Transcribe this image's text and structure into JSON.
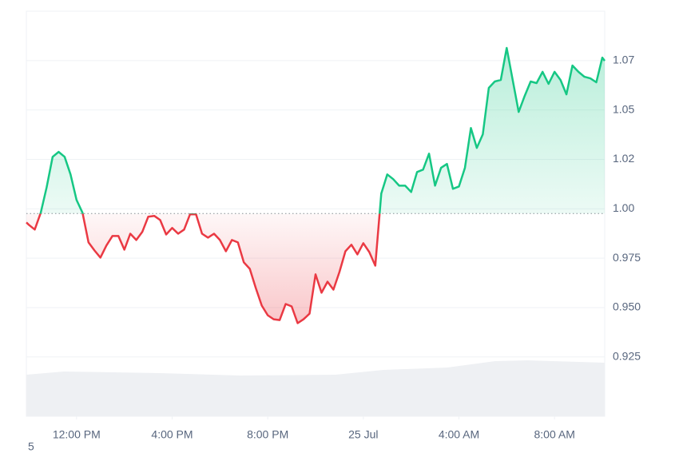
{
  "chart_data": {
    "type": "line",
    "x": [
      9.9,
      10,
      10.25,
      10.5,
      10.75,
      11,
      11.25,
      11.5,
      11.75,
      12,
      12.25,
      12.5,
      12.75,
      13,
      13.25,
      13.5,
      13.75,
      14,
      14.25,
      14.5,
      14.75,
      15,
      15.25,
      15.5,
      15.75,
      16,
      16.25,
      16.5,
      16.75,
      17,
      17.25,
      17.5,
      17.75,
      18,
      18.25,
      18.5,
      18.75,
      19,
      19.25,
      19.5,
      19.75,
      20,
      20.25,
      20.5,
      20.75,
      21,
      21.25,
      21.5,
      21.75,
      22,
      22.25,
      22.5,
      22.75,
      23,
      23.25,
      23.5,
      23.75,
      24,
      24.25,
      24.5,
      24.75,
      25,
      25.25,
      25.5,
      25.75,
      26,
      26.25,
      26.5,
      26.75,
      27,
      27.25,
      27.5,
      27.75,
      28,
      28.25,
      28.5,
      28.75,
      29,
      29.25,
      29.5,
      29.75,
      30,
      30.25,
      30.5,
      30.75,
      31,
      31.25,
      31.5,
      31.75,
      32,
      32.25,
      32.5,
      32.75,
      33,
      33.25,
      33.5,
      33.75,
      34,
      34.1
    ],
    "series": [
      {
        "values": [
          0.9931,
          0.9919,
          0.9895,
          0.998,
          1.0109,
          1.0263,
          1.0288,
          1.0263,
          1.0174,
          1.0045,
          0.998,
          0.983,
          0.9789,
          0.9753,
          0.9814,
          0.9862,
          0.9862,
          0.9793,
          0.9874,
          0.9842,
          0.9883,
          0.996,
          0.9964,
          0.9943,
          0.987,
          0.9903,
          0.9874,
          0.9895,
          0.9972,
          0.9972,
          0.9874,
          0.9854,
          0.9874,
          0.9842,
          0.9785,
          0.9842,
          0.983,
          0.9729,
          0.9696,
          0.9599,
          0.951,
          0.9461,
          0.9441,
          0.9437,
          0.9518,
          0.9506,
          0.9421,
          0.9441,
          0.9469,
          0.9668,
          0.9575,
          0.9631,
          0.9591,
          0.968,
          0.9785,
          0.9818,
          0.9769,
          0.9826,
          0.9781,
          0.9712,
          1.0077,
          1.0174,
          1.015,
          1.0117,
          1.0117,
          1.0085,
          1.0186,
          1.0198,
          1.0279,
          1.0117,
          1.0207,
          1.0227,
          1.0101,
          1.0113,
          1.0207,
          1.0409,
          1.0308,
          1.0377,
          1.0612,
          1.0644,
          1.0652,
          1.0814,
          1.0652,
          1.049,
          1.0571,
          1.0644,
          1.0636,
          1.0693,
          1.0632,
          1.0693,
          1.0652,
          1.0579,
          1.0725,
          1.0693,
          1.0668,
          1.066,
          1.064,
          1.0765,
          1.0749
        ]
      }
    ],
    "baseline": 0.9976,
    "up_color": "#16c784",
    "down_color": "#ea3943",
    "xlim": [
      9.9,
      34.1
    ],
    "ylim": [
      0.895,
      1.1
    ],
    "xticks": [
      {
        "value": 12,
        "label": "12:00 PM"
      },
      {
        "value": 16,
        "label": "4:00 PM"
      },
      {
        "value": 20,
        "label": "8:00 PM"
      },
      {
        "value": 24,
        "label": "25 Jul"
      },
      {
        "value": 28,
        "label": "4:00 AM"
      },
      {
        "value": 32,
        "label": "8:00 AM"
      }
    ],
    "yticks": [
      {
        "value": 0.925,
        "label": "0.925"
      },
      {
        "value": 0.95,
        "label": "0.950"
      },
      {
        "value": 0.975,
        "label": "0.975"
      },
      {
        "value": 1.0,
        "label": "1.00"
      },
      {
        "value": 1.025,
        "label": "1.02"
      },
      {
        "value": 1.05,
        "label": "1.05"
      },
      {
        "value": 1.075,
        "label": "1.07"
      }
    ],
    "grid": true,
    "note": "5"
  }
}
